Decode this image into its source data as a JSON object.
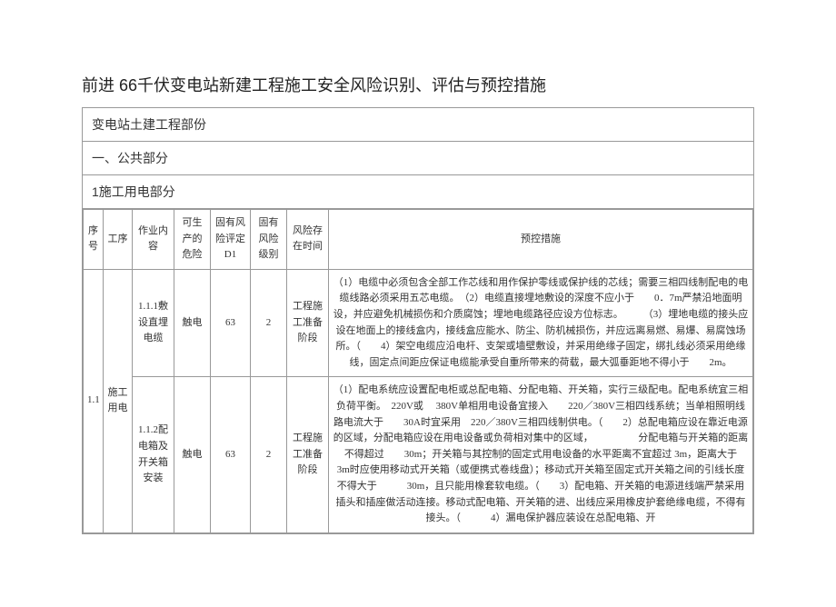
{
  "title": "前进 66千伏变电站新建工程施工安全风险识别、评估与预控措施",
  "section1": "变电站土建工程部份",
  "section2": "一、公共部分",
  "section3": "1施工用电部分",
  "headers": {
    "seq": "序号",
    "proc": "工序",
    "work": "作业内容",
    "danger": "可生产的危险",
    "rate": "固有风险评定  D1",
    "level": "固有风险级别",
    "time": "风险存在时间",
    "measure": "预控措施"
  },
  "rows": [
    {
      "seq": "1.1",
      "proc": "施工用电",
      "work": "1.1.1敷设直埋电缆",
      "danger": "触电",
      "rate": "63",
      "level": "2",
      "time": "工程施工准备阶段",
      "measure": "（1）电缆中必须包含全部工作芯线和用作保护零线或保护线的芯线；需要三相四线制配电的电缆线路必须采用五芯电缆。　（2）电缆直接埋地敷设的深度不应小于　　0．7m严禁沿地面明设，并应避免机械损伤和介质腐蚀；埋地电缆路径应设方位标志。　　　（3）埋地电缆的接头应设在地面上的接线盒内，接线盒应能水、防尘、防机械损伤，并应远离易燃、易爆、易腐蚀场所。（　　4）架空电缆应沿电杆、支架或墙壁敷设，并采用绝缘子固定，绑扎线必须采用绝缘线，固定点间距应保证电缆能承受自重所带来的荷载，最大弧垂距地不得小于　　2m。"
    },
    {
      "work": "1.1.2配电箱及开关箱安装",
      "danger": "触电",
      "rate": "63",
      "level": "2",
      "time": "工程施工准备阶段",
      "measure": "（1）配电系统应设置配电柜或总配电箱、分配电箱、开关箱，实行三级配电。配电系统宜三相负荷平衡。　220V或 　380V单相用电设备宜接入　　220／380V三相四线系统；当单相照明线路电流大于　　30A时宜采用　220／380V三相四线制供电。（　　2）总配电箱应设在靠近电源的区域，分配电箱应设在用电设备或负荷相对集中的区域，　　　　　分配电箱与开关箱的距离不得超过　　30m；开关箱与其控制的固定式用电设备的水平距离不宜超过 3m，距离大于　　3m时应使用移动式开关箱（或便携式卷线盘）；移动式开关箱至固定式开关箱之间的引线长度不得大于　　　30m，且只能用橡套软电缆。（　　3）配电箱、开关箱的电源进线端严禁采用插头和插座做活动连接。移动式配电箱、开关箱的进、出线应采用橡皮护套绝缘电缆，不得有接头。（　　　4）漏电保护器应装设在总配电箱、开"
    }
  ]
}
